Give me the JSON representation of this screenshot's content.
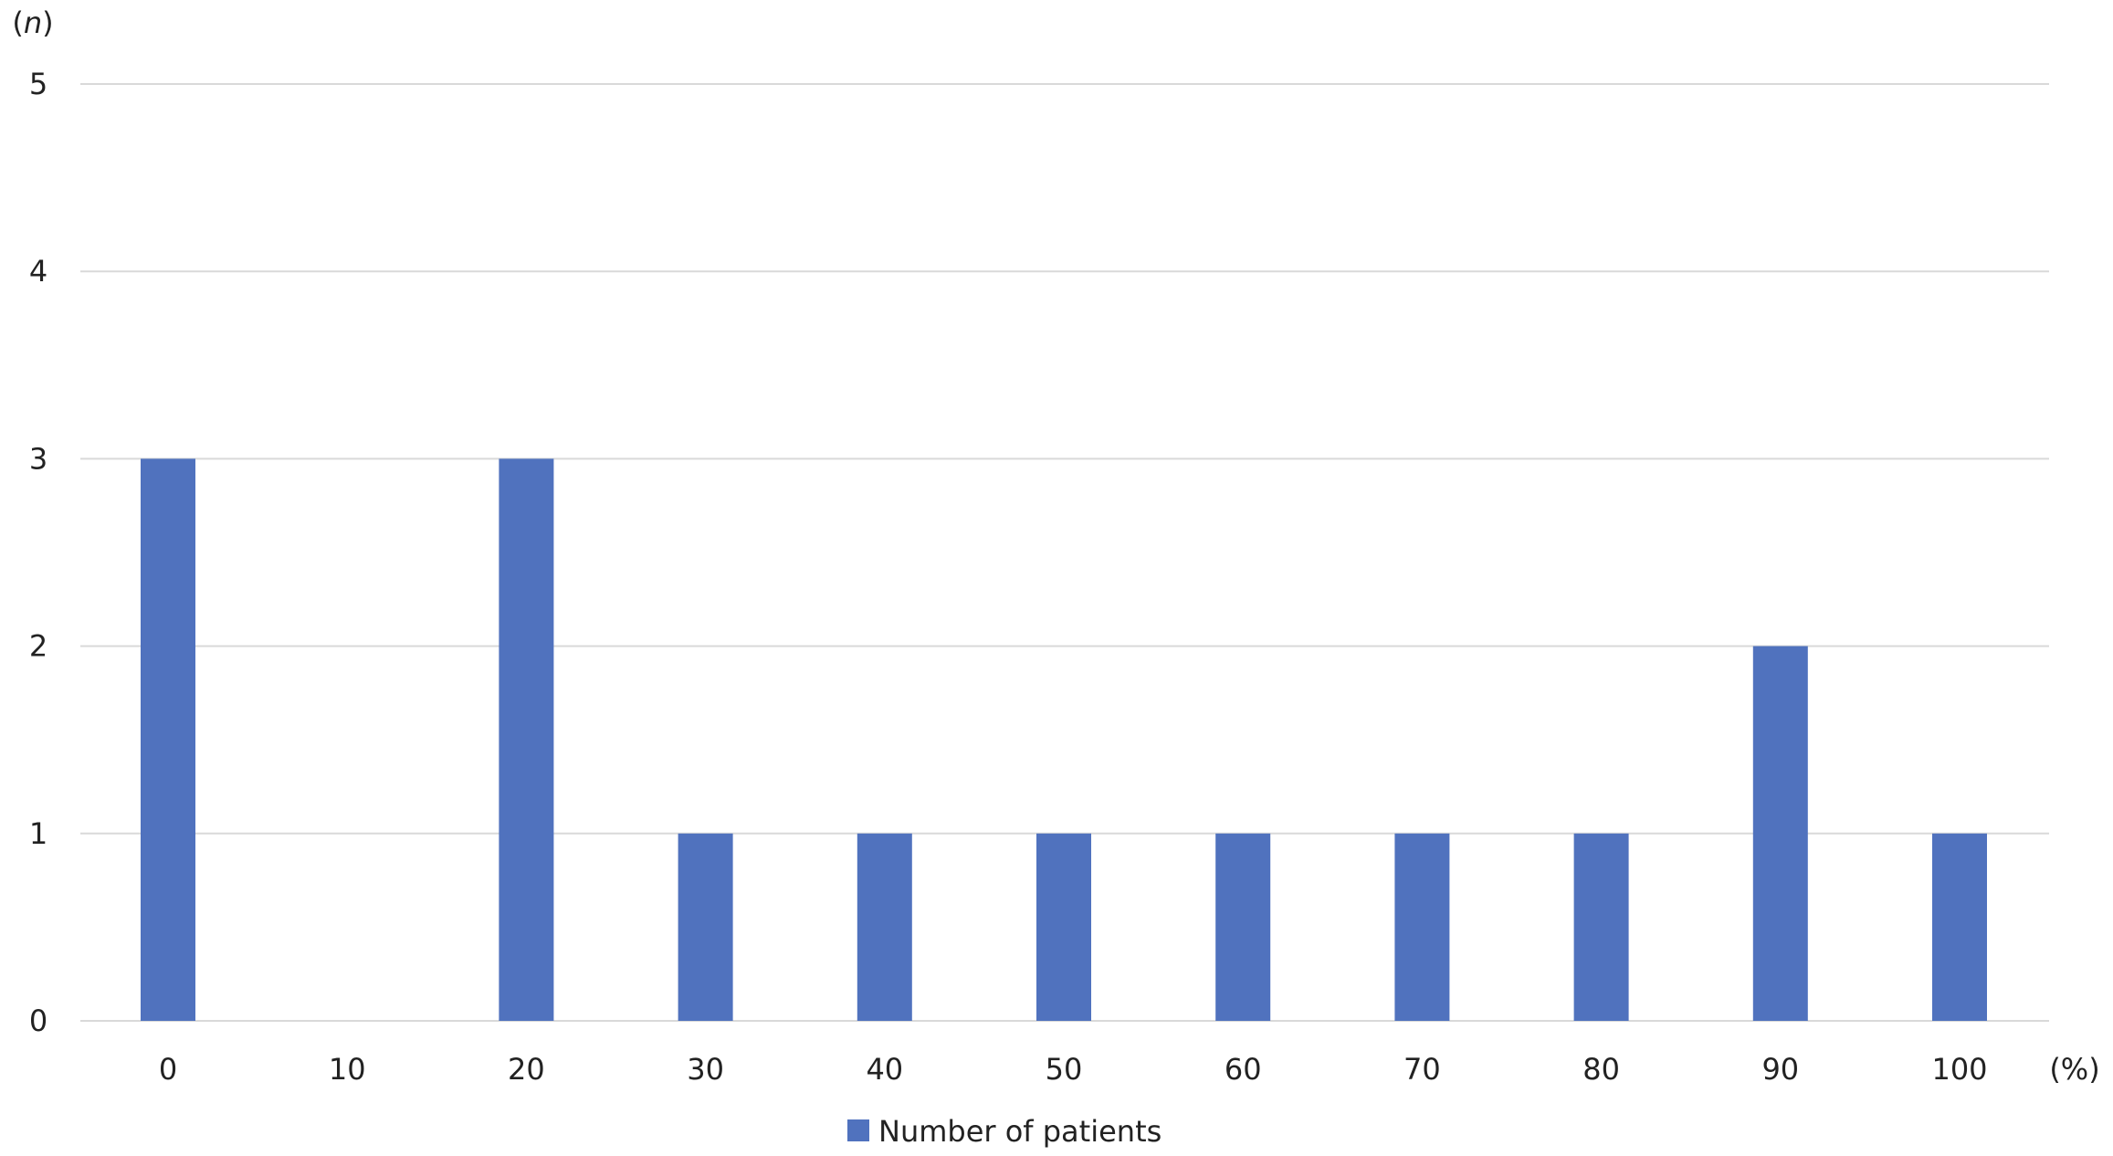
{
  "chart_data": {
    "type": "bar",
    "categories": [
      "0",
      "10",
      "20",
      "30",
      "40",
      "50",
      "60",
      "70",
      "80",
      "90",
      "100"
    ],
    "series": [
      {
        "name": "Number of patients",
        "values": [
          3,
          0,
          3,
          1,
          1,
          1,
          1,
          1,
          1,
          2,
          1
        ],
        "color": "#5072BE"
      }
    ],
    "ylabel": "n",
    "xunit": "(%)",
    "ylim": [
      0,
      5
    ],
    "yticks": [
      "0",
      "1",
      "2",
      "3",
      "4",
      "5"
    ],
    "grid": true,
    "legend_position": "bottom"
  }
}
